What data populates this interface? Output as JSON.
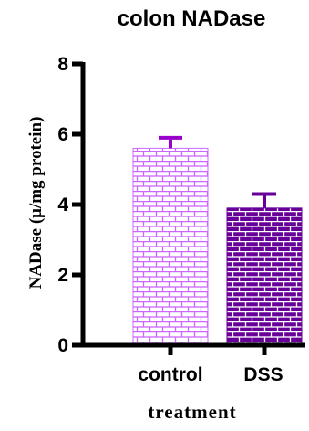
{
  "chart_data": {
    "type": "bar",
    "title": "colon NADase",
    "xlabel": "treatment",
    "ylabel": "NADase (μ/mg protein)",
    "categories": [
      "control",
      "DSS"
    ],
    "values": [
      5.6,
      3.9
    ],
    "errors": [
      0.3,
      0.4
    ],
    "ylim": [
      0,
      8
    ],
    "yticks": [
      "0",
      "2",
      "4",
      "6",
      "8"
    ],
    "grid": false,
    "colors": {
      "control": "#cc66ff",
      "DSS": "#660099",
      "control_error": "#9900cc",
      "DSS_error": "#660099",
      "axis": "#000000"
    },
    "patterns": [
      "brick-outline",
      "brick-filled"
    ]
  }
}
